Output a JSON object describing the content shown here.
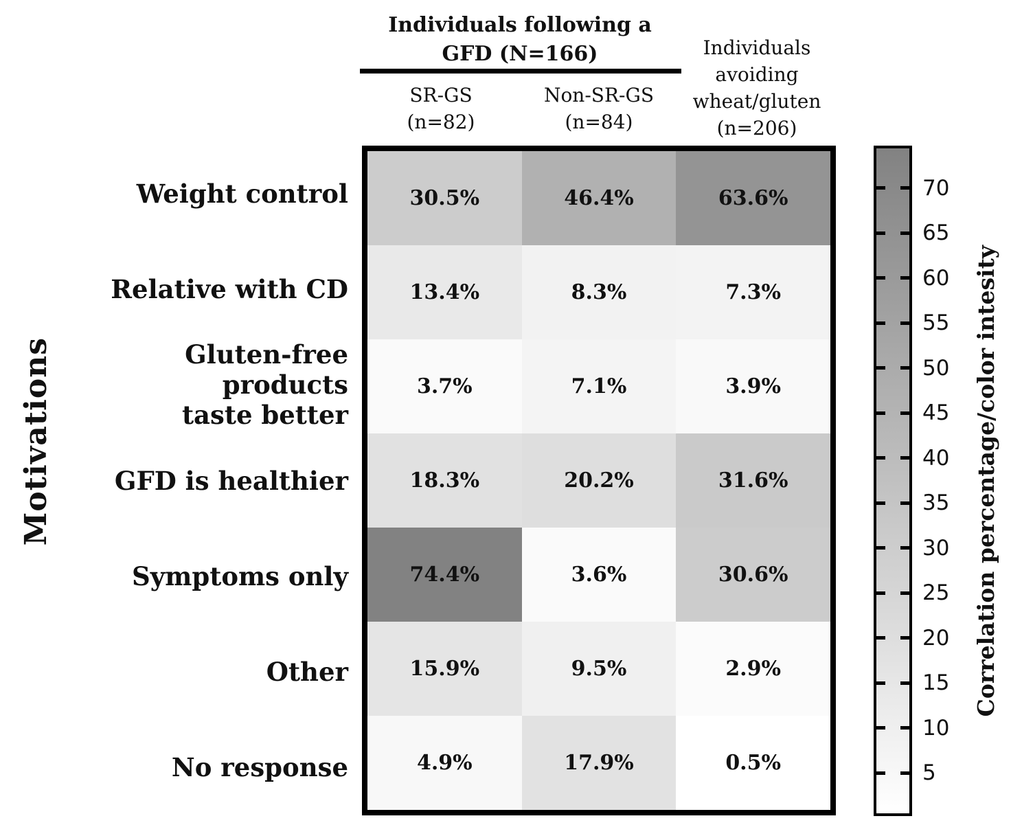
{
  "header": {
    "group_title": "Individuals following a\nGFD (N=166)",
    "columns": [
      {
        "label": "SR-GS\n(n=82)"
      },
      {
        "label": "Non-SR-GS\n(n=84)"
      },
      {
        "label": "Individuals\navoiding\nwheat/gluten\n(n=206)"
      }
    ]
  },
  "y_axis": {
    "label": "Motivations"
  },
  "colorbar": {
    "label": "Correlation percentage/color intesity",
    "ticks": [
      5,
      10,
      15,
      20,
      25,
      30,
      35,
      40,
      45,
      50,
      55,
      60,
      65,
      70
    ],
    "range": [
      0.5,
      74.4
    ],
    "color_low": "#ffffff",
    "color_high": "#828282"
  },
  "chart_data": {
    "type": "heatmap",
    "title": "",
    "xlabel": "",
    "ylabel": "Motivations",
    "grid": false,
    "legend_position": "right-colorbar",
    "categories": [
      "Weight control",
      "Relative with CD",
      "Gluten-free products\ntaste better",
      "GFD is healthier",
      "Symptoms only",
      "Other",
      "No response"
    ],
    "series": [
      {
        "name": "SR-GS (n=82)",
        "values": [
          30.5,
          13.4,
          3.7,
          18.3,
          74.4,
          15.9,
          4.9
        ]
      },
      {
        "name": "Non-SR-GS (n=84)",
        "values": [
          46.4,
          8.3,
          7.1,
          20.2,
          3.6,
          9.5,
          17.9
        ]
      },
      {
        "name": "Individuals avoiding wheat/gluten (n=206)",
        "values": [
          63.6,
          7.3,
          3.9,
          31.6,
          30.6,
          2.9,
          0.5
        ]
      }
    ],
    "cell_label_suffix": "%",
    "value_range": [
      0.5,
      74.4
    ],
    "colormap": "white-to-gray"
  }
}
